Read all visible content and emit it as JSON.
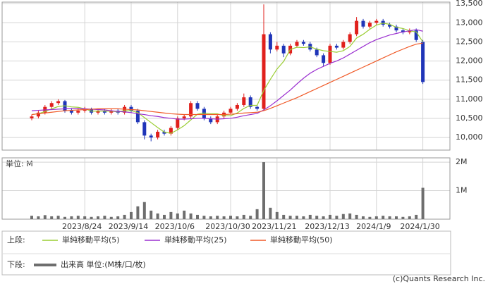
{
  "chart_data": [
    {
      "type": "candlestick",
      "up_color": "#e0201c",
      "down_color": "#1f35b8",
      "grid": true,
      "ylim": [
        9670,
        13540
      ],
      "yticks": [
        {
          "value": 10000,
          "label": "10,000"
        },
        {
          "value": 10500,
          "label": "10,500"
        },
        {
          "value": 11000,
          "label": "11,000"
        },
        {
          "value": 11500,
          "label": "11,500"
        },
        {
          "value": 12000,
          "label": "12,000"
        },
        {
          "value": 12500,
          "label": "12,500"
        },
        {
          "value": 13000,
          "label": "13,000"
        },
        {
          "value": 13500,
          "label": "13,500"
        }
      ],
      "open": [
        10500,
        10550,
        10650,
        10800,
        10900,
        10950,
        10700,
        10650,
        10700,
        10750,
        10650,
        10700,
        10650,
        10700,
        10650,
        10800,
        10700,
        10400,
        10050,
        10000,
        10150,
        10100,
        10250,
        10500,
        10550,
        10900,
        10750,
        10500,
        10400,
        10550,
        10650,
        10750,
        10850,
        11050,
        10800,
        10750,
        12700,
        12300,
        12400,
        12200,
        12400,
        12500,
        12450,
        12300,
        12150,
        11950,
        12400,
        12350,
        12500,
        12700,
        13050,
        12900,
        13000,
        13050,
        12950,
        12900,
        12800,
        12750,
        12800,
        12500
      ],
      "high": [
        10600,
        10700,
        10850,
        10950,
        11000,
        10980,
        10750,
        10750,
        10800,
        10780,
        10750,
        10750,
        10750,
        10750,
        10850,
        10850,
        10750,
        10450,
        10100,
        10200,
        10200,
        10300,
        10550,
        10600,
        10950,
        10950,
        10800,
        10550,
        10600,
        10700,
        10800,
        10900,
        11150,
        11100,
        10850,
        13480,
        12750,
        12500,
        12450,
        12450,
        12550,
        12550,
        12500,
        12350,
        12200,
        12450,
        12450,
        12550,
        12750,
        13150,
        13100,
        13050,
        13100,
        13100,
        13000,
        12950,
        12850,
        12850,
        12850,
        12550
      ],
      "low": [
        10450,
        10500,
        10600,
        10750,
        10850,
        10650,
        10600,
        10600,
        10650,
        10600,
        10600,
        10600,
        10600,
        10600,
        10600,
        10650,
        10350,
        9950,
        9900,
        9950,
        10050,
        10050,
        10200,
        10450,
        10500,
        10700,
        10450,
        10350,
        10350,
        10500,
        10600,
        10700,
        10800,
        10750,
        10700,
        10700,
        12200,
        12250,
        12100,
        12150,
        12350,
        12400,
        12250,
        12100,
        11850,
        11900,
        12300,
        12300,
        12450,
        12650,
        12850,
        12850,
        12950,
        12900,
        12850,
        12750,
        12700,
        12700,
        12500,
        11400
      ],
      "close": [
        10550,
        10650,
        10800,
        10900,
        10950,
        10700,
        10650,
        10700,
        10750,
        10650,
        10700,
        10650,
        10700,
        10650,
        10800,
        10700,
        10400,
        10050,
        10000,
        10150,
        10100,
        10250,
        10500,
        10550,
        10900,
        10750,
        10500,
        10400,
        10550,
        10650,
        10750,
        10850,
        11050,
        10800,
        10750,
        12700,
        12300,
        12400,
        12200,
        12400,
        12500,
        12450,
        12300,
        12150,
        11950,
        12400,
        12350,
        12500,
        12700,
        13050,
        12900,
        13000,
        13050,
        12950,
        12900,
        12800,
        12750,
        12800,
        12550,
        11450
      ],
      "legend_label": "上段:",
      "series": [
        {
          "name": "単純移動平均(5)",
          "color": "#9acd32",
          "values": [
            10600,
            10620,
            10680,
            10750,
            10810,
            10830,
            10800,
            10790,
            10750,
            10690,
            10690,
            10690,
            10690,
            10670,
            10700,
            10700,
            10650,
            10520,
            10390,
            10260,
            10140,
            10110,
            10200,
            10310,
            10460,
            10610,
            10640,
            10620,
            10620,
            10570,
            10570,
            10640,
            10760,
            10840,
            10840,
            11230,
            11520,
            11790,
            11990,
            12300,
            12360,
            12350,
            12370,
            12310,
            12270,
            12250,
            12230,
            12270,
            12380,
            12600,
            12700,
            12830,
            12940,
            12990,
            12960,
            12880,
            12850,
            12790,
            12760,
            12500
          ]
        },
        {
          "name": "単純移動平均(25)",
          "color": "#9b30d0",
          "values": [
            10700,
            10710,
            10720,
            10730,
            10740,
            10750,
            10760,
            10760,
            10750,
            10740,
            10730,
            10720,
            10700,
            10680,
            10670,
            10650,
            10620,
            10600,
            10570,
            10550,
            10520,
            10500,
            10480,
            10480,
            10490,
            10500,
            10500,
            10490,
            10480,
            10490,
            10500,
            10530,
            10570,
            10600,
            10630,
            10720,
            10830,
            10960,
            11100,
            11240,
            11400,
            11550,
            11680,
            11780,
            11860,
            11940,
            12000,
            12080,
            12180,
            12280,
            12380,
            12480,
            12560,
            12620,
            12680,
            12720,
            12760,
            12790,
            12820,
            12780
          ]
        },
        {
          "name": "単純移動平均(50)",
          "color": "#f05a28",
          "values": [
            10600,
            10620,
            10640,
            10660,
            10680,
            10700,
            10710,
            10720,
            10730,
            10740,
            10750,
            10750,
            10750,
            10750,
            10740,
            10730,
            10720,
            10700,
            10680,
            10660,
            10640,
            10620,
            10610,
            10600,
            10600,
            10600,
            10600,
            10600,
            10600,
            10600,
            10610,
            10620,
            10640,
            10650,
            10660,
            10700,
            10760,
            10830,
            10900,
            10970,
            11040,
            11120,
            11200,
            11280,
            11360,
            11440,
            11520,
            11600,
            11680,
            11760,
            11840,
            11920,
            12000,
            12080,
            12160,
            12240,
            12310,
            12380,
            12440,
            12470
          ]
        }
      ]
    },
    {
      "type": "bar",
      "unit_label": "単位: M",
      "legend_label": "下段:",
      "name": "出来高 単位:(M株/口/枚)",
      "color": "#6e6e6e",
      "grid": true,
      "ylim": [
        0,
        2.15
      ],
      "yticks": [
        {
          "value": 1,
          "label": "1M"
        },
        {
          "value": 2,
          "label": "2M"
        }
      ],
      "categories": [
        null,
        null,
        null,
        null,
        null,
        null,
        null,
        null,
        "2023/8/24",
        null,
        null,
        null,
        null,
        null,
        null,
        "2023/9/14",
        null,
        null,
        null,
        null,
        null,
        null,
        "2023/10/6",
        null,
        null,
        null,
        null,
        null,
        null,
        null,
        "2023/10/30",
        null,
        null,
        null,
        null,
        null,
        null,
        "2023/11/21",
        null,
        null,
        null,
        null,
        null,
        null,
        null,
        "2023/12/13",
        null,
        null,
        null,
        null,
        null,
        null,
        "2024/1/9",
        null,
        null,
        null,
        null,
        null,
        null,
        "2024/1/30"
      ],
      "values": [
        0.12,
        0.1,
        0.14,
        0.1,
        0.12,
        0.08,
        0.1,
        0.12,
        0.1,
        0.08,
        0.1,
        0.12,
        0.08,
        0.1,
        0.15,
        0.25,
        0.45,
        0.6,
        0.3,
        0.2,
        0.15,
        0.25,
        0.2,
        0.3,
        0.2,
        0.15,
        0.12,
        0.1,
        0.12,
        0.1,
        0.12,
        0.1,
        0.15,
        0.12,
        0.35,
        2.0,
        0.4,
        0.25,
        0.15,
        0.12,
        0.12,
        0.1,
        0.15,
        0.12,
        0.1,
        0.15,
        0.12,
        0.18,
        0.2,
        0.15,
        0.1,
        0.08,
        0.1,
        0.12,
        0.1,
        0.1,
        0.08,
        0.1,
        0.15,
        1.1
      ]
    }
  ],
  "credit": "(c)Quants Research Inc."
}
